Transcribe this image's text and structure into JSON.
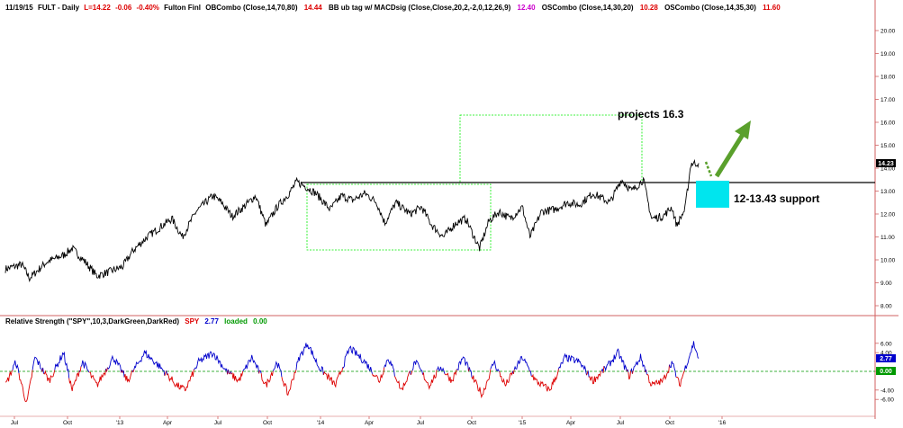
{
  "header": {
    "date": "11/19/15",
    "symbol": "FULT - Daily",
    "last": "L=14.22",
    "change": "-0.06",
    "change_pct": "-0.40%",
    "name": "Fulton Finl",
    "ind1": "OBCombo (Close,14,70,80)",
    "ind1_val": "14.44",
    "ind2": "BB ub tag w/ MACDsig (Close,Close,20,2,-2,0,12,26,9)",
    "ind2_val": "12.40",
    "ind3": "OSCombo (Close,14,30,20)",
    "ind3_val": "10.28",
    "ind4": "OSCombo (Close,14,35,30)",
    "ind4_val": "11.60"
  },
  "colors": {
    "price": "#000000",
    "rs_up": "#0000cc",
    "rs_down": "#dd0000",
    "annotation_box": "#00ee00",
    "support_box": "#00e5ee",
    "arrow": "#5aa02c",
    "last_badge": "#000000",
    "rs_badge": "#0000cc",
    "zero_badge": "#009900"
  },
  "annotations": {
    "projection": "projects 16.3",
    "support": "12-13.43 support"
  },
  "price_badge": "14.23",
  "rs_header": {
    "label": "Relative Strength (\"SPY\",10,3,DarkGreen,DarkRed)",
    "spy_label": "SPY",
    "spy_val": "2.77",
    "loaded_label": "loaded",
    "loaded_val": "0.00"
  },
  "rs_badges": {
    "value": "2.77",
    "zero": "0.00"
  },
  "chart_data": [
    {
      "type": "line",
      "title": "FULT - Daily",
      "x_tick_labels": [
        "Jul",
        "Oct",
        "'13",
        "Apr",
        "Jul",
        "Oct",
        "'14",
        "Apr",
        "Jul",
        "Oct",
        "'15",
        "Apr",
        "Jul",
        "Oct",
        "'16"
      ],
      "y_tick_labels": [
        "8.00",
        "9.00",
        "10.00",
        "11.00",
        "12.00",
        "13.00",
        "14.00",
        "15.00",
        "16.00",
        "17.00",
        "18.00",
        "19.00",
        "20.00"
      ],
      "ylim": [
        7.5,
        20.6
      ],
      "grid": false,
      "series": [
        {
          "x": [
            "2012-06-01",
            "2012-07-01",
            "2012-07-15",
            "2012-08-15",
            "2012-09-15",
            "2012-10-01",
            "2012-10-25",
            "2012-11-15",
            "2012-12-10",
            "2013-01-01",
            "2013-01-20",
            "2013-02-15",
            "2013-03-15",
            "2013-04-01",
            "2013-04-20",
            "2013-05-15",
            "2013-06-15",
            "2013-07-01",
            "2013-07-20",
            "2013-08-10",
            "2013-09-01",
            "2013-09-20",
            "2013-10-10",
            "2013-11-01",
            "2013-11-15",
            "2013-12-01",
            "2013-12-20",
            "2014-01-15",
            "2014-02-05",
            "2014-02-25",
            "2014-03-20",
            "2014-04-10",
            "2014-04-25",
            "2014-05-15",
            "2014-06-10",
            "2014-07-01",
            "2014-07-20",
            "2014-08-10",
            "2014-09-01",
            "2014-09-20",
            "2014-10-05",
            "2014-10-15",
            "2014-11-01",
            "2014-11-20",
            "2014-12-10",
            "2015-01-01",
            "2015-01-15",
            "2015-02-05",
            "2015-03-01",
            "2015-03-25",
            "2015-04-15",
            "2015-05-10",
            "2015-06-10",
            "2015-07-01",
            "2015-07-20",
            "2015-08-10",
            "2015-08-25",
            "2015-09-15",
            "2015-10-01",
            "2015-10-10",
            "2015-10-25",
            "2015-11-05",
            "2015-11-19"
          ],
          "values": [
            9.6,
            9.8,
            9.2,
            9.9,
            10.2,
            10.5,
            9.9,
            9.3,
            9.5,
            9.7,
            10.4,
            11.0,
            11.5,
            11.8,
            11.0,
            12.1,
            12.8,
            12.5,
            11.9,
            12.3,
            12.8,
            11.5,
            12.3,
            12.9,
            13.4,
            13.2,
            12.9,
            12.2,
            12.8,
            12.6,
            12.9,
            12.5,
            11.6,
            12.5,
            12.0,
            12.3,
            11.5,
            11.0,
            11.6,
            11.8,
            11.0,
            10.5,
            11.7,
            12.1,
            11.8,
            12.3,
            11.0,
            12.1,
            12.2,
            12.5,
            12.4,
            12.9,
            12.5,
            13.5,
            13.0,
            13.5,
            11.8,
            11.9,
            12.3,
            11.5,
            12.2,
            14.2,
            14.22
          ]
        }
      ]
    },
    {
      "type": "line",
      "title": "Relative Strength (\"SPY\",10,3,DarkGreen,DarkRed)",
      "x_tick_labels": [
        "Jul",
        "Oct",
        "'13",
        "Apr",
        "Jul",
        "Oct",
        "'14",
        "Apr",
        "Jul",
        "Oct",
        "'15",
        "Apr",
        "Jul",
        "Oct",
        "'16"
      ],
      "y_tick_labels": [
        "6.00",
        "4.00",
        "0.00",
        "-4.00",
        "-6.00"
      ],
      "ylim": [
        -8,
        9
      ],
      "series": [
        {
          "name": "SPY",
          "x": [
            "2012-06-01",
            "2012-06-20",
            "2012-07-10",
            "2012-07-25",
            "2012-08-20",
            "2012-09-15",
            "2012-10-01",
            "2012-10-20",
            "2012-11-15",
            "2012-12-15",
            "2013-01-10",
            "2013-02-10",
            "2013-03-10",
            "2013-04-10",
            "2013-04-25",
            "2013-05-20",
            "2013-06-15",
            "2013-07-10",
            "2013-08-01",
            "2013-08-25",
            "2013-09-20",
            "2013-10-10",
            "2013-10-30",
            "2013-11-20",
            "2013-12-05",
            "2013-12-25",
            "2014-01-25",
            "2014-02-20",
            "2014-03-20",
            "2014-04-15",
            "2014-05-01",
            "2014-05-25",
            "2014-06-20",
            "2014-07-15",
            "2014-08-05",
            "2014-08-25",
            "2014-09-15",
            "2014-10-05",
            "2014-10-20",
            "2014-11-10",
            "2014-12-01",
            "2015-01-01",
            "2015-01-25",
            "2015-02-20",
            "2015-03-20",
            "2015-04-15",
            "2015-05-10",
            "2015-06-05",
            "2015-06-25",
            "2015-07-15",
            "2015-08-05",
            "2015-08-25",
            "2015-09-15",
            "2015-10-01",
            "2015-10-15",
            "2015-11-01",
            "2015-11-10",
            "2015-11-19"
          ],
          "values": [
            -3,
            2,
            -7,
            3,
            -2,
            4,
            -4,
            2,
            -3,
            3,
            -2,
            4,
            1,
            -3,
            -4,
            2,
            4,
            0,
            -2,
            3,
            -3,
            2,
            -5,
            3,
            6,
            1,
            -3,
            5,
            2,
            -2,
            3,
            -4,
            2,
            -3,
            1,
            -2,
            3,
            -2,
            -5,
            2,
            -3,
            3,
            -2,
            -4,
            3,
            2,
            -2,
            1,
            4,
            -1,
            3,
            -3,
            -2,
            2,
            -3,
            3,
            6,
            2.77
          ]
        }
      ]
    }
  ]
}
